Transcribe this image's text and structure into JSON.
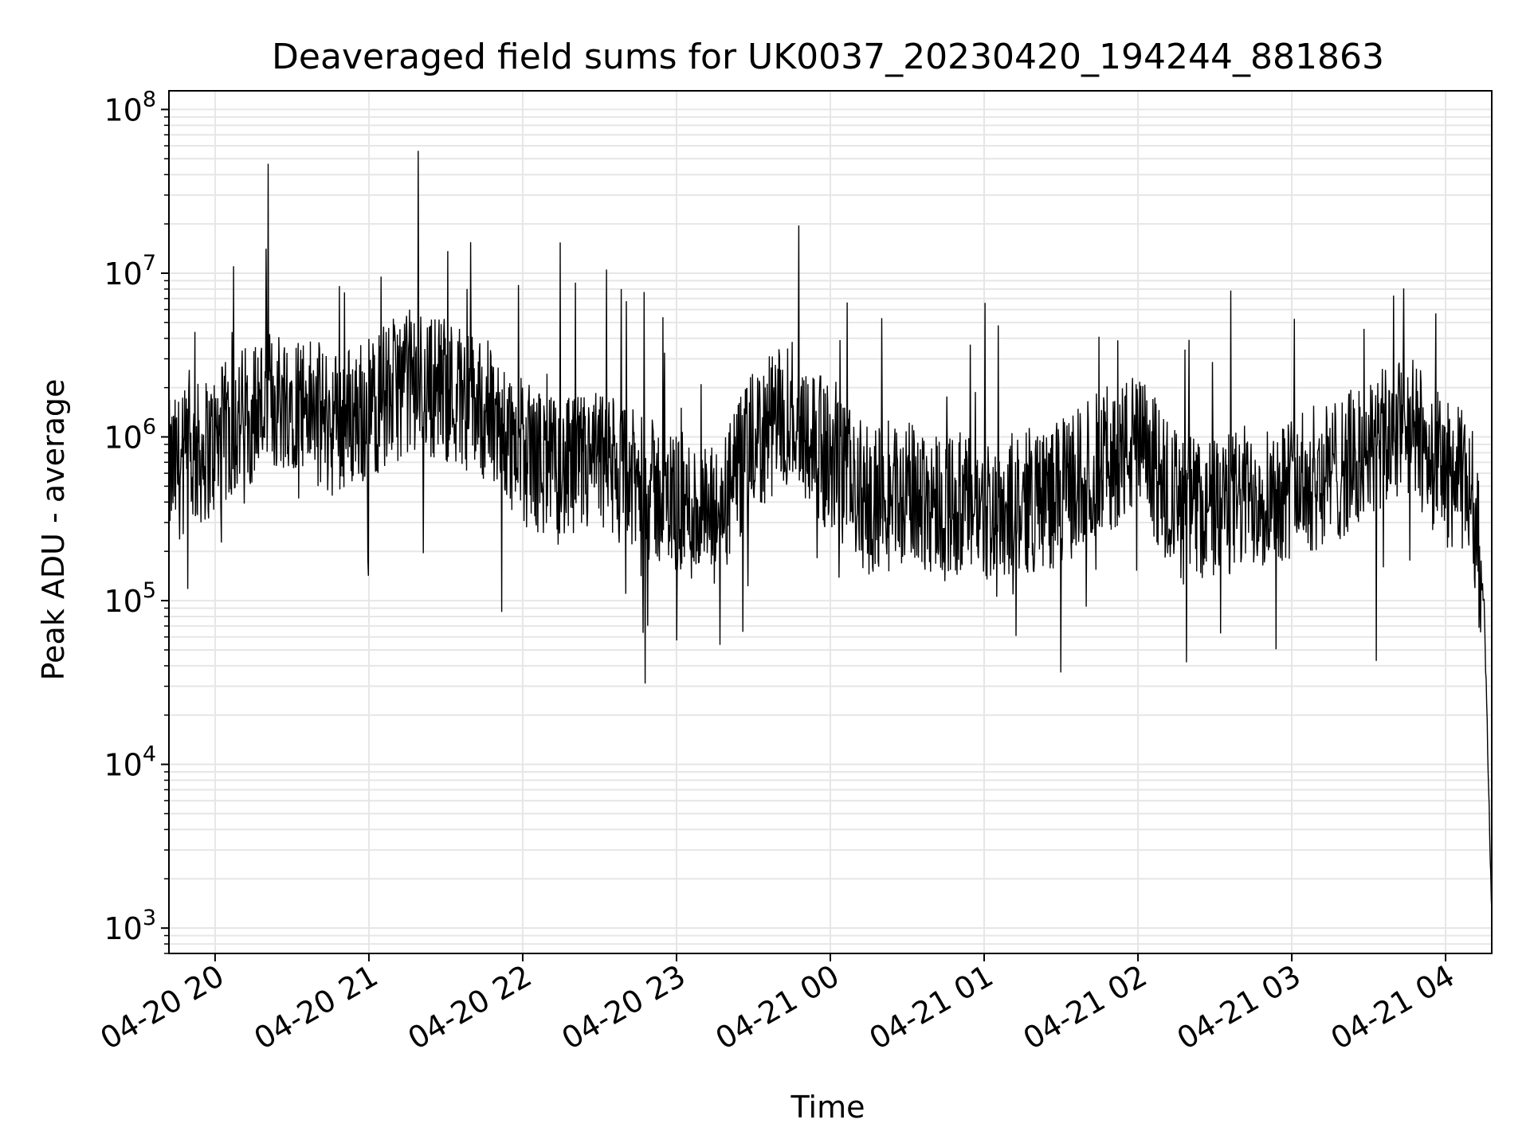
{
  "chart_data": {
    "type": "line",
    "title": "Deaveraged field sums for UK0037_20230420_194244_881863",
    "xlabel": "Time",
    "ylabel": "Peak ADU - average",
    "yscale": "log",
    "xlim": [
      "2023-04-20 19:42",
      "2023-04-21 04:18"
    ],
    "ylim": [
      700,
      130000000
    ],
    "x_ticks": [
      "04-20 20",
      "04-20 21",
      "04-20 22",
      "04-20 23",
      "04-21 00",
      "04-21 01",
      "04-21 02",
      "04-21 03",
      "04-21 04"
    ],
    "y_ticks": [
      {
        "base": "10",
        "exp": "3",
        "value": 1000
      },
      {
        "base": "10",
        "exp": "4",
        "value": 10000
      },
      {
        "base": "10",
        "exp": "5",
        "value": 100000
      },
      {
        "base": "10",
        "exp": "6",
        "value": 1000000
      },
      {
        "base": "10",
        "exp": "7",
        "value": 10000000
      },
      {
        "base": "10",
        "exp": "8",
        "value": 100000000
      }
    ],
    "grid": true,
    "line_color": "#000000",
    "grid_color": "#e6e6e6",
    "series": [
      {
        "x": [
          "2023-04-20 19:42",
          "2023-04-20 20:00",
          "2023-04-20 20:15",
          "2023-04-20 20:30",
          "2023-04-20 20:45",
          "2023-04-20 21:00",
          "2023-04-20 21:15",
          "2023-04-20 21:30",
          "2023-04-20 21:45",
          "2023-04-20 22:00",
          "2023-04-20 22:15",
          "2023-04-20 22:30",
          "2023-04-20 22:45",
          "2023-04-20 23:00",
          "2023-04-20 23:15",
          "2023-04-20 23:30",
          "2023-04-20 23:45",
          "2023-04-21 00:00",
          "2023-04-21 00:15",
          "2023-04-21 00:30",
          "2023-04-21 00:45",
          "2023-04-21 01:00",
          "2023-04-21 01:15",
          "2023-04-21 01:30",
          "2023-04-21 01:45",
          "2023-04-21 02:00",
          "2023-04-21 02:15",
          "2023-04-21 02:30",
          "2023-04-21 02:45",
          "2023-04-21 03:00",
          "2023-04-21 03:15",
          "2023-04-21 03:30",
          "2023-04-21 03:45",
          "2023-04-21 04:00",
          "2023-04-21 04:10",
          "2023-04-21 04:15",
          "2023-04-21 04:18"
        ],
        "y": [
          600000,
          900000,
          1500000,
          1800000,
          1200000,
          1500000,
          2200000,
          2000000,
          1500000,
          800000,
          600000,
          700000,
          500000,
          400000,
          300000,
          900000,
          1500000,
          700000,
          400000,
          450000,
          400000,
          350000,
          400000,
          450000,
          700000,
          900000,
          400000,
          350000,
          450000,
          500000,
          600000,
          800000,
          1200000,
          600000,
          500000,
          100000,
          1200
        ]
      }
    ]
  }
}
